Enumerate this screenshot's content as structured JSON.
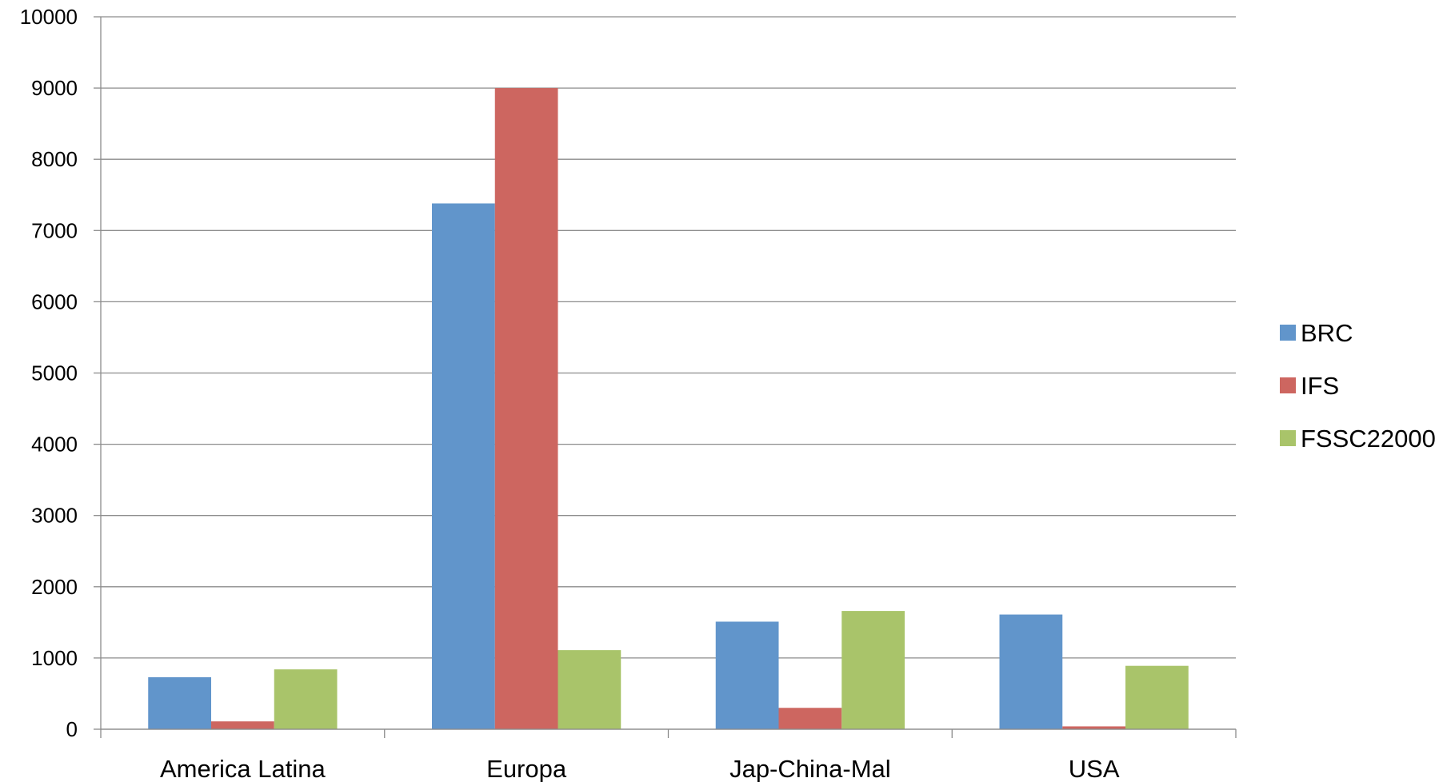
{
  "chart_data": {
    "type": "bar",
    "title": "",
    "xlabel": "",
    "ylabel": "",
    "categories": [
      "America Latina",
      "Europa",
      "Jap-China-Mal",
      "USA"
    ],
    "series": [
      {
        "name": "BRC",
        "color": "#6195CB",
        "values": [
          730,
          7380,
          1510,
          1610
        ]
      },
      {
        "name": "IFS",
        "color": "#CD6660",
        "values": [
          110,
          9000,
          300,
          40
        ]
      },
      {
        "name": "FSSC22000",
        "color": "#A9C46A",
        "values": [
          840,
          1110,
          1660,
          890
        ]
      }
    ],
    "ylim": [
      0,
      10000
    ],
    "yticks": [
      0,
      1000,
      2000,
      3000,
      4000,
      5000,
      6000,
      7000,
      8000,
      9000,
      10000
    ],
    "grid": true,
    "legend": "right"
  }
}
